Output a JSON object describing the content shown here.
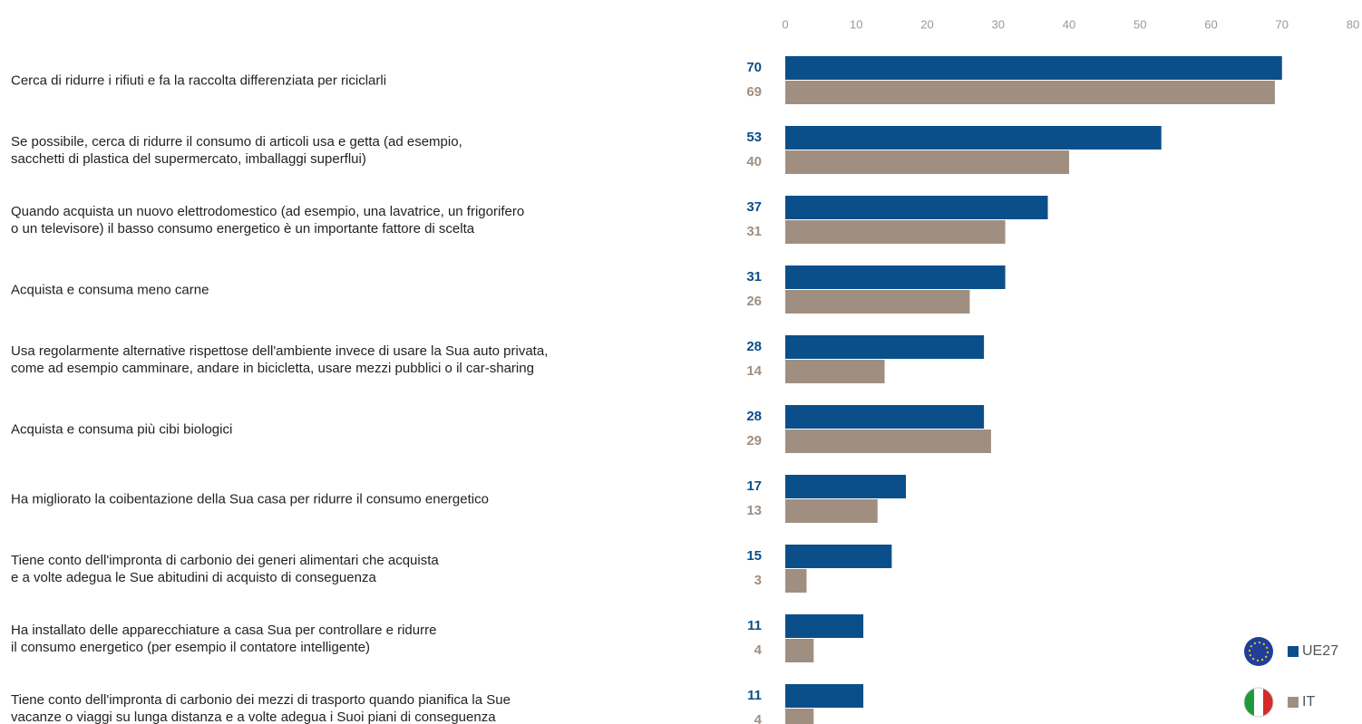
{
  "chart_data": {
    "type": "hbar",
    "categories": [
      "Cerca di ridurre i rifiuti e fa la raccolta differenziata per riciclarli",
      "Se possibile, cerca di ridurre il consumo di articoli usa e getta (ad esempio,\nsacchetti di plastica del supermercato, imballaggi superflui)",
      "Quando acquista un nuovo elettrodomestico (ad esempio, una lavatrice, un frigorifero\no un televisore) il basso consumo energetico è un importante fattore di scelta",
      "Acquista e consuma meno carne",
      "Usa regolarmente alternative rispettose dell'ambiente invece di usare la Sua auto privata,\ncome ad esempio camminare, andare in bicicletta, usare mezzi pubblici o il car-sharing",
      "Acquista e consuma più cibi biologici",
      "Ha migliorato la coibentazione della Sua casa per ridurre il consumo energetico",
      "Tiene conto dell'impronta di carbonio dei generi alimentari che acquista\ne a volte adegua le Sue abitudini di acquisto di conseguenza",
      "Ha installato delle apparecchiature a casa Sua per controllare e ridurre\nil consumo energetico (per esempio il contatore intelligente)",
      "Tiene conto dell'impronta di carbonio dei mezzi di trasporto quando pianifica la Sue\nvacanze o viaggi su lunga distanza e a volte adegua i Suoi piani di conseguenza"
    ],
    "series": [
      {
        "name": "UE27",
        "color": "#0b4f8a",
        "values": [
          70,
          53,
          37,
          31,
          28,
          28,
          17,
          15,
          11,
          11
        ]
      },
      {
        "name": "IT",
        "color": "#a08f81",
        "values": [
          69,
          40,
          31,
          26,
          14,
          29,
          13,
          3,
          4,
          4
        ]
      }
    ],
    "xlim": [
      0,
      80
    ],
    "xticks": [
      0,
      10,
      20,
      30,
      40,
      50,
      60,
      70,
      80
    ]
  }
}
